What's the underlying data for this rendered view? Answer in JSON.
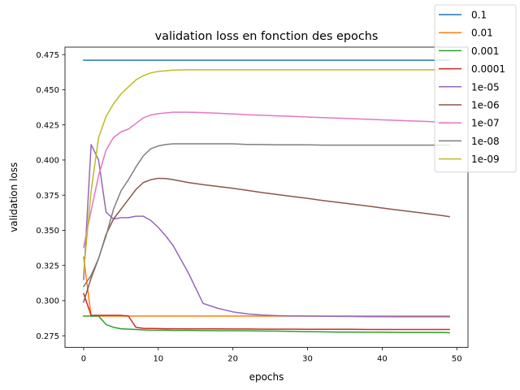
{
  "chart_data": {
    "type": "line",
    "title": "validation loss en fonction des epochs",
    "xlabel": "epochs",
    "ylabel": "validation loss",
    "xlim": [
      -2.5,
      51.5
    ],
    "ylim": [
      0.2667,
      0.4803
    ],
    "x_ticks": [
      0,
      10,
      20,
      30,
      40,
      50
    ],
    "x_tick_labels": [
      "0",
      "10",
      "20",
      "30",
      "40",
      "50"
    ],
    "y_ticks": [
      0.275,
      0.3,
      0.325,
      0.35,
      0.375,
      0.4,
      0.425,
      0.45,
      0.475
    ],
    "y_tick_labels": [
      "0.275",
      "0.300",
      "0.325",
      "0.350",
      "0.375",
      "0.400",
      "0.425",
      "0.450",
      "0.475"
    ],
    "grid": false,
    "legend_position": "top-right",
    "x_knots": [
      0,
      1,
      2,
      3,
      4,
      5,
      6,
      7,
      8,
      9,
      10,
      11,
      12,
      14,
      16,
      18,
      20,
      22,
      24,
      26,
      28,
      30,
      32,
      34,
      36,
      38,
      40,
      42,
      44,
      46,
      48,
      49
    ],
    "series": [
      {
        "name": "0.1",
        "color": "#1f77b4",
        "values": [
          0.471,
          0.471,
          0.471,
          0.471,
          0.471,
          0.471,
          0.471,
          0.471,
          0.471,
          0.471,
          0.471,
          0.471,
          0.471,
          0.471,
          0.471,
          0.471,
          0.471,
          0.471,
          0.471,
          0.471,
          0.471,
          0.471,
          0.471,
          0.471,
          0.471,
          0.471,
          0.471,
          0.471,
          0.471,
          0.471,
          0.471,
          0.471
        ]
      },
      {
        "name": "0.01",
        "color": "#ff7f0e",
        "values": [
          0.331,
          0.289,
          0.289,
          0.289,
          0.289,
          0.289,
          0.289,
          0.289,
          0.289,
          0.289,
          0.289,
          0.289,
          0.289,
          0.289,
          0.289,
          0.289,
          0.289,
          0.289,
          0.289,
          0.289,
          0.289,
          0.289,
          0.289,
          0.289,
          0.289,
          0.289,
          0.289,
          0.289,
          0.289,
          0.289,
          0.289,
          0.289
        ]
      },
      {
        "name": "0.001",
        "color": "#2ca02c",
        "values": [
          0.289,
          0.289,
          0.289,
          0.283,
          0.281,
          0.28,
          0.2797,
          0.2795,
          0.2792,
          0.279,
          0.279,
          0.279,
          0.2788,
          0.2788,
          0.2787,
          0.2786,
          0.2786,
          0.2785,
          0.2784,
          0.2783,
          0.2781,
          0.2779,
          0.2778,
          0.2776,
          0.2776,
          0.2775,
          0.2775,
          0.2774,
          0.2774,
          0.2774,
          0.2773,
          0.2772
        ]
      },
      {
        "name": "0.0001",
        "color": "#d62728",
        "values": [
          0.305,
          0.2895,
          0.2895,
          0.2895,
          0.2895,
          0.2895,
          0.289,
          0.281,
          0.2803,
          0.2802,
          0.2801,
          0.28,
          0.28,
          0.2799,
          0.2799,
          0.2799,
          0.2798,
          0.2798,
          0.2797,
          0.2797,
          0.2797,
          0.2796,
          0.2796,
          0.2796,
          0.2796,
          0.2795,
          0.2795,
          0.2795,
          0.2795,
          0.2795,
          0.2795,
          0.2795
        ]
      },
      {
        "name": "1e-05",
        "color": "#9467bd",
        "values": [
          0.315,
          0.411,
          0.4,
          0.363,
          0.358,
          0.359,
          0.359,
          0.36,
          0.36,
          0.357,
          0.352,
          0.346,
          0.339,
          0.32,
          0.298,
          0.2945,
          0.292,
          0.2905,
          0.2897,
          0.2893,
          0.2891,
          0.289,
          0.2889,
          0.2888,
          0.2887,
          0.2886,
          0.2886,
          0.2885,
          0.2885,
          0.2885,
          0.2885,
          0.2885
        ]
      },
      {
        "name": "1e-06",
        "color": "#8c564b",
        "values": [
          0.299,
          0.316,
          0.33,
          0.347,
          0.358,
          0.365,
          0.372,
          0.379,
          0.384,
          0.386,
          0.387,
          0.3868,
          0.386,
          0.384,
          0.3825,
          0.3812,
          0.3799,
          0.3784,
          0.3768,
          0.3754,
          0.374,
          0.3727,
          0.3712,
          0.3699,
          0.3686,
          0.3673,
          0.3659,
          0.3645,
          0.3632,
          0.3619,
          0.3605,
          0.3597
        ]
      },
      {
        "name": "1e-07",
        "color": "#e377c2",
        "values": [
          0.338,
          0.364,
          0.389,
          0.407,
          0.416,
          0.42,
          0.422,
          0.426,
          0.43,
          0.432,
          0.433,
          0.4335,
          0.434,
          0.434,
          0.4337,
          0.4333,
          0.4328,
          0.4322,
          0.4318,
          0.4314,
          0.431,
          0.4306,
          0.4302,
          0.4298,
          0.4294,
          0.429,
          0.4286,
          0.4282,
          0.4278,
          0.4274,
          0.427,
          0.4268
        ]
      },
      {
        "name": "1e-08",
        "color": "#7f7f7f",
        "values": [
          0.31,
          0.318,
          0.33,
          0.346,
          0.365,
          0.378,
          0.386,
          0.395,
          0.403,
          0.408,
          0.41,
          0.411,
          0.4115,
          0.4115,
          0.4115,
          0.4115,
          0.4115,
          0.411,
          0.411,
          0.4108,
          0.4108,
          0.4108,
          0.4106,
          0.4106,
          0.4106,
          0.4106,
          0.4106,
          0.4106,
          0.4106,
          0.4106,
          0.4106,
          0.4106
        ]
      },
      {
        "name": "1e-09",
        "color": "#bcbd22",
        "values": [
          0.32,
          0.378,
          0.416,
          0.431,
          0.44,
          0.447,
          0.452,
          0.457,
          0.46,
          0.462,
          0.463,
          0.4635,
          0.464,
          0.4642,
          0.4642,
          0.4642,
          0.4642,
          0.4642,
          0.4642,
          0.4642,
          0.4642,
          0.4642,
          0.4642,
          0.4642,
          0.4642,
          0.4642,
          0.4642,
          0.4642,
          0.4642,
          0.4642,
          0.4642,
          0.4642
        ]
      }
    ]
  }
}
